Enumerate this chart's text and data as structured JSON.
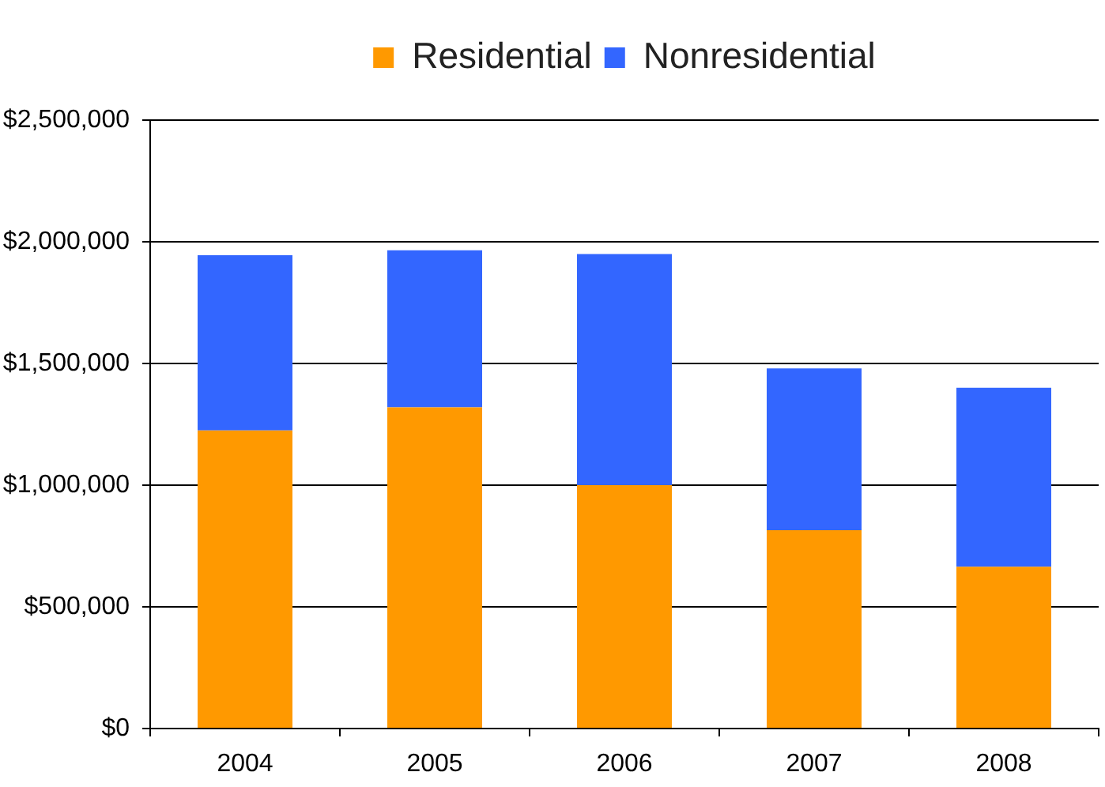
{
  "chart_data": {
    "type": "bar",
    "stacked": true,
    "categories": [
      "2004",
      "2005",
      "2006",
      "2007",
      "2008"
    ],
    "series": [
      {
        "name": "Residential",
        "color": "#ff9900",
        "values": [
          1225000,
          1320000,
          1000000,
          815000,
          665000
        ]
      },
      {
        "name": "Nonresidential",
        "color": "#3366ff",
        "values": [
          720000,
          645000,
          950000,
          665000,
          735000
        ]
      }
    ],
    "ylim": [
      0,
      2500000
    ],
    "yticks": [
      {
        "value": 0,
        "label": "$0"
      },
      {
        "value": 500000,
        "label": "$500,000"
      },
      {
        "value": 1000000,
        "label": "$1,000,000"
      },
      {
        "value": 1500000,
        "label": "$1,500,000"
      },
      {
        "value": 2000000,
        "label": "$2,000,000"
      },
      {
        "value": 2500000,
        "label": "$2,500,000"
      }
    ],
    "grid": "y",
    "legend": "top"
  }
}
